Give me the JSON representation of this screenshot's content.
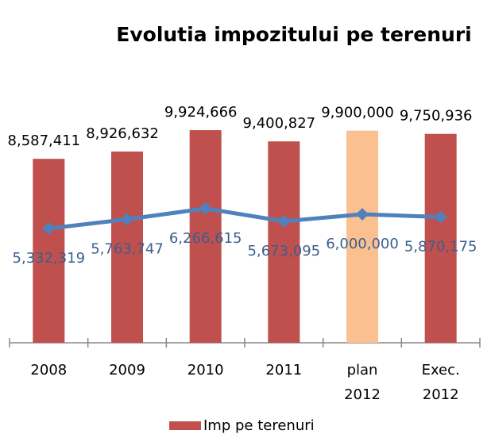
{
  "chart_data": {
    "type": "bar",
    "title": "Evolutia impozitului pe terenuri",
    "categories": [
      "2008",
      "2009",
      "2010",
      "2011",
      "plan 2012",
      "Exec. 2012"
    ],
    "ylim": [
      0,
      12000000
    ],
    "series": [
      {
        "name": "Imp pe terenuri",
        "type": "bar",
        "color": "#C0504D",
        "colors": [
          "#C0504D",
          "#C0504D",
          "#C0504D",
          "#C0504D",
          "#FAC090",
          "#C0504D"
        ],
        "values": [
          8587411,
          8926632,
          9924666,
          9400827,
          9900000,
          9750936
        ],
        "value_labels": [
          "8,587,411",
          "8,926,632",
          "9,924,666",
          "9,400,827",
          "9,900,000",
          "9,750,936"
        ]
      },
      {
        "type": "line",
        "color": "#4F81BD",
        "label_color": "#3A5F8F",
        "values": [
          5332319,
          5763747,
          6266615,
          5673095,
          6000000,
          5870175
        ],
        "value_labels": [
          "5,332,319",
          "5,763,747",
          "6,266,615",
          "5,673,095",
          "6,000,000",
          "5,870,175"
        ]
      }
    ],
    "legend": "bottom"
  }
}
